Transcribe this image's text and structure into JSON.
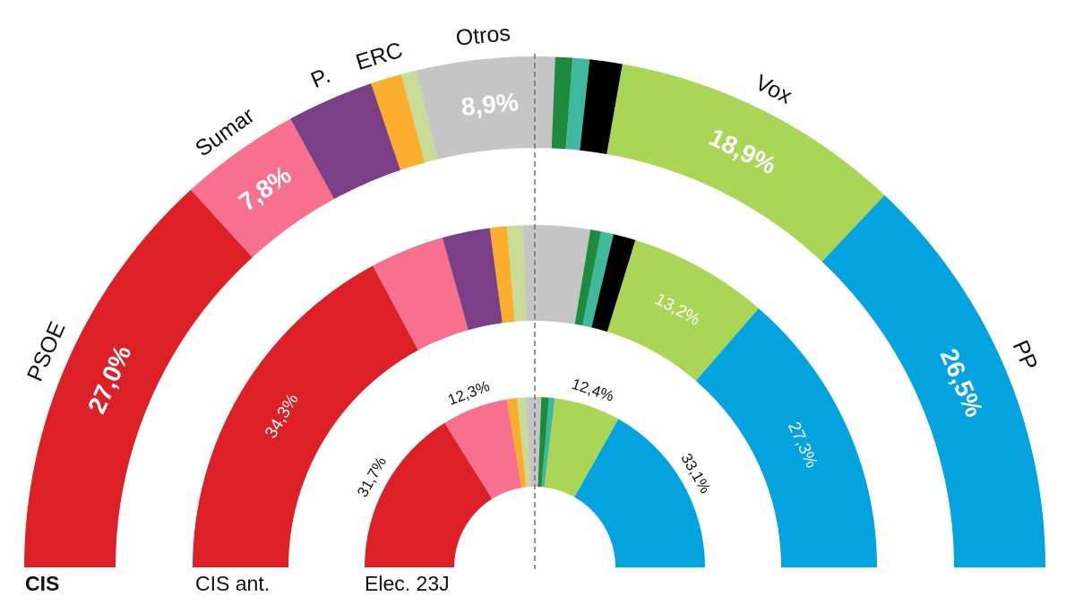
{
  "colors": {
    "PSOE": "#dd1f26",
    "Sumar": "#f7718e",
    "Podemos": "#7b3f87",
    "ERC": "#fbad2d",
    "Junts": "#c9dc97",
    "Otros": "#c5c5c5",
    "Bildu": "#1e8a3c",
    "PNV": "#3fb89f",
    "Vox_black": "#000000",
    "Vox": "#a9d656",
    "PP": "#02a3de"
  },
  "chart_data": {
    "type": "semicircle-donut",
    "rings": [
      {
        "id": "elec23j",
        "label": "Elec. 23J",
        "bold": false,
        "segments": [
          {
            "party": "PSOE",
            "value": 31.7,
            "label": "31,7%"
          },
          {
            "party": "Sumar",
            "value": 12.3,
            "label": "12,3%"
          },
          {
            "party": "Podemos",
            "value": 0
          },
          {
            "party": "ERC",
            "value": 1.9
          },
          {
            "party": "Junts",
            "value": 1.6
          },
          {
            "party": "Otros",
            "value": 2.9
          },
          {
            "party": "Bildu",
            "value": 1.4
          },
          {
            "party": "PNV",
            "value": 1.1
          },
          {
            "party": "Vox_black",
            "value": 0
          },
          {
            "party": "Vox",
            "value": 12.4,
            "label": "12,4%"
          },
          {
            "party": "PP",
            "value": 33.1,
            "label": "33,1%"
          }
        ]
      },
      {
        "id": "cis_ant",
        "label": "CIS ant.",
        "bold": false,
        "segments": [
          {
            "party": "PSOE",
            "value": 34.3,
            "label": "34,3%"
          },
          {
            "party": "Sumar",
            "value": 7.0
          },
          {
            "party": "Podemos",
            "value": 4.5
          },
          {
            "party": "ERC",
            "value": 1.6
          },
          {
            "party": "Junts",
            "value": 1.5
          },
          {
            "party": "Otros",
            "value": 6.3
          },
          {
            "party": "Bildu",
            "value": 1.0
          },
          {
            "party": "PNV",
            "value": 1.2
          },
          {
            "party": "Vox_black",
            "value": 2.1
          },
          {
            "party": "Vox",
            "value": 13.2,
            "label": "13,2%"
          },
          {
            "party": "PP",
            "value": 27.3,
            "label": "27,3%"
          }
        ]
      },
      {
        "id": "cis",
        "label": "CIS",
        "bold": true,
        "segments": [
          {
            "party": "PSOE",
            "value": 27.0,
            "label": "27,0%",
            "outer": "PSOE"
          },
          {
            "party": "Sumar",
            "value": 7.8,
            "label": "7,8%",
            "outer": "Sumar"
          },
          {
            "party": "Podemos",
            "value": 5.6,
            "outer": "P."
          },
          {
            "party": "ERC",
            "value": 2.0,
            "outer": "ERC"
          },
          {
            "party": "Junts",
            "value": 1.0
          },
          {
            "party": "Otros",
            "value": 8.9,
            "label": "8,9%",
            "outer": "Otros"
          },
          {
            "party": "Bildu",
            "value": 1.1
          },
          {
            "party": "PNV",
            "value": 1.1
          },
          {
            "party": "Vox_black",
            "value": 2.1
          },
          {
            "party": "Vox",
            "value": 18.9,
            "label": "18,9%",
            "outer": "Vox"
          },
          {
            "party": "PP",
            "value": 26.5,
            "label": "26,5%",
            "outer": "PP"
          }
        ]
      }
    ]
  }
}
